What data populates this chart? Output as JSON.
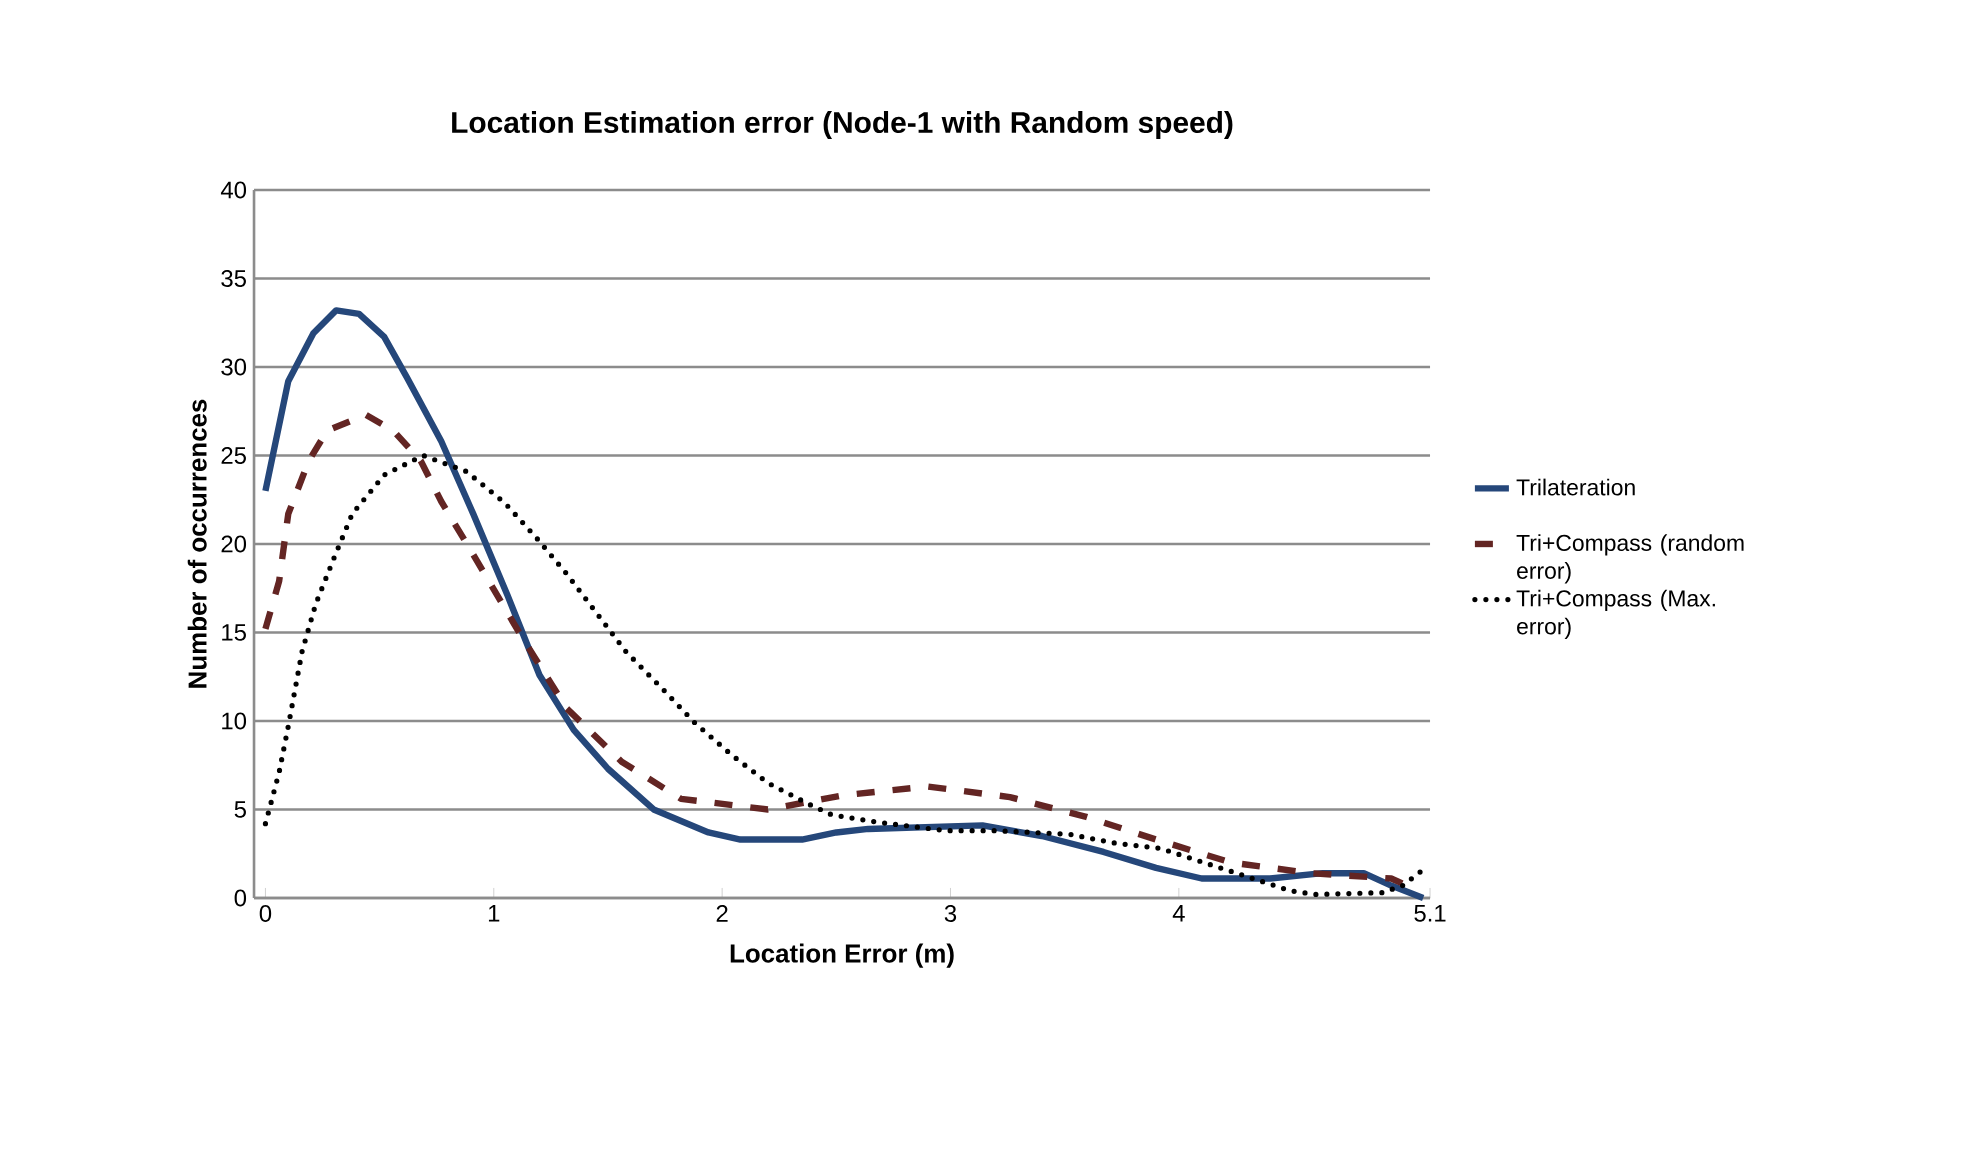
{
  "chart_data": {
    "type": "line",
    "title": "Location Estimation error (Node-1 with Random speed)",
    "xlabel": "Location Error (m)",
    "ylabel": "Number of occurrences",
    "xlim": [
      -0.05,
      5.1
    ],
    "xticks": [
      0,
      1,
      2,
      3,
      4,
      5.1
    ],
    "ylim": [
      0,
      40
    ],
    "yticks": [
      0,
      5,
      10,
      15,
      20,
      25,
      30,
      35,
      40
    ],
    "grid": "y",
    "legend": "right",
    "series": [
      {
        "name": "Trilateration",
        "color": "#25477a",
        "line_style": "solid",
        "x": [
          0,
          0.1,
          0.21,
          0.31,
          0.41,
          0.52,
          0.62,
          0.77,
          0.91,
          1.06,
          1.2,
          1.35,
          1.5,
          1.7,
          1.94,
          2.08,
          2.35,
          2.5,
          2.64,
          3.14,
          3.4,
          3.67,
          3.9,
          4.1,
          4.4,
          4.63,
          4.81,
          4.93,
          5.07
        ],
        "values": [
          23,
          29.2,
          31.9,
          33.2,
          33,
          31.7,
          29.4,
          25.8,
          21.7,
          17.1,
          12.6,
          9.5,
          7.3,
          5,
          3.7,
          3.3,
          3.3,
          3.7,
          3.9,
          4.1,
          3.5,
          2.6,
          1.7,
          1.1,
          1.1,
          1.4,
          1.4,
          0.7,
          0
        ]
      },
      {
        "name": "Tri+Compass (random error)",
        "color": "#632523",
        "line_style": "dashed",
        "x": [
          0,
          0.06,
          0.1,
          0.19,
          0.27,
          0.44,
          0.56,
          0.68,
          0.77,
          0.91,
          1.12,
          1.32,
          1.56,
          1.82,
          2.2,
          2.53,
          2.9,
          3.26,
          3.59,
          3.9,
          4.23,
          4.58,
          4.93,
          5.0
        ],
        "values": [
          15.2,
          17.9,
          21.7,
          24.7,
          26.4,
          27.3,
          26.4,
          24.7,
          22.4,
          19.4,
          14.8,
          10.7,
          7.7,
          5.6,
          5,
          5.8,
          6.3,
          5.7,
          4.6,
          3.3,
          2,
          1.4,
          1.1,
          0.7
        ]
      },
      {
        "name": "Tri+Compass (Max. error)",
        "color": "#000000",
        "line_style": "dotted",
        "x": [
          0,
          0.06,
          0.1,
          0.16,
          0.22,
          0.3,
          0.38,
          0.52,
          0.69,
          0.88,
          1.05,
          1.19,
          1.32,
          1.45,
          1.58,
          1.74,
          1.88,
          2.04,
          2.2,
          2.38,
          2.48,
          2.67,
          2.98,
          3.2,
          3.52,
          3.72,
          3.92,
          4.11,
          4.3,
          4.49,
          4.6,
          4.89,
          4.98,
          5.07
        ],
        "values": [
          4.2,
          7.1,
          9.7,
          13.9,
          16.6,
          19.2,
          21.7,
          23.9,
          25,
          24.1,
          22.3,
          20.3,
          18.3,
          16.1,
          13.9,
          11.8,
          9.9,
          8.1,
          6.5,
          5.3,
          4.7,
          4.3,
          3.8,
          3.8,
          3.6,
          3.1,
          2.8,
          2,
          1.2,
          0.4,
          0.2,
          0.3,
          0.7,
          1.6
        ]
      }
    ]
  }
}
